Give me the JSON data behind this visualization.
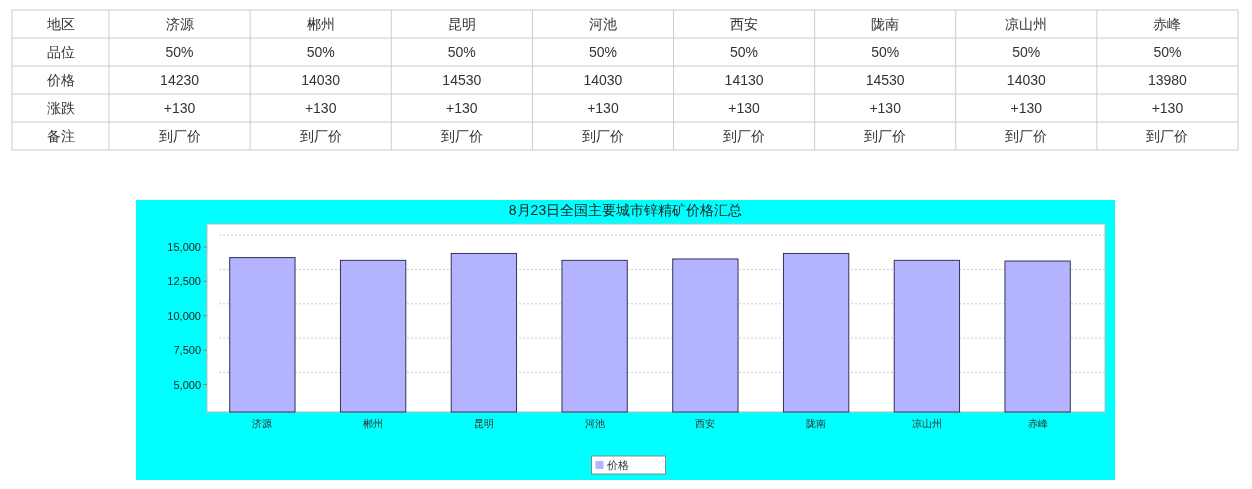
{
  "chart_data": [
    {
      "type": "other",
      "ylabel": "地区",
      "categories": [
        "济源",
        "郴州",
        "昆明",
        "河池",
        "西安",
        "陇南",
        "凉山州",
        "赤峰"
      ],
      "y_categories": [
        "品位",
        "价格",
        "涨跌",
        "备注"
      ],
      "cell_labels": [
        [
          "50%",
          "50%",
          "50%",
          "50%",
          "50%",
          "50%",
          "50%",
          "50%"
        ],
        [
          "14230",
          "14030",
          "14530",
          "14030",
          "14130",
          "14530",
          "14030",
          "13980"
        ],
        [
          "+130",
          "+130",
          "+130",
          "+130",
          "+130",
          "+130",
          "+130",
          "+130"
        ],
        [
          "到厂价",
          "到厂价",
          "到厂价",
          "到厂价",
          "到厂价",
          "到厂价",
          "到厂价",
          "到厂价"
        ]
      ]
    },
    {
      "type": "bar",
      "title": "8月23日全国主要城市锌精矿价格汇总",
      "categories": [
        "济源",
        "郴州",
        "昆明",
        "河池",
        "西安",
        "陇南",
        "凉山州",
        "赤峰"
      ],
      "series": [
        {
          "name": "价格",
          "color": "#b3b3ff",
          "values": [
            14230,
            14030,
            14530,
            14030,
            14130,
            14530,
            14030,
            13980
          ]
        }
      ],
      "ylim": [
        3000,
        15800
      ],
      "yticks": [
        {
          "value": 5000,
          "label": "5,000"
        },
        {
          "value": 7500,
          "label": "7,500"
        },
        {
          "value": 10000,
          "label": "10,000"
        },
        {
          "value": 12500,
          "label": "12,500"
        },
        {
          "value": 15000,
          "label": "15,000"
        }
      ],
      "grid": "y",
      "legend": "bottom"
    }
  ]
}
